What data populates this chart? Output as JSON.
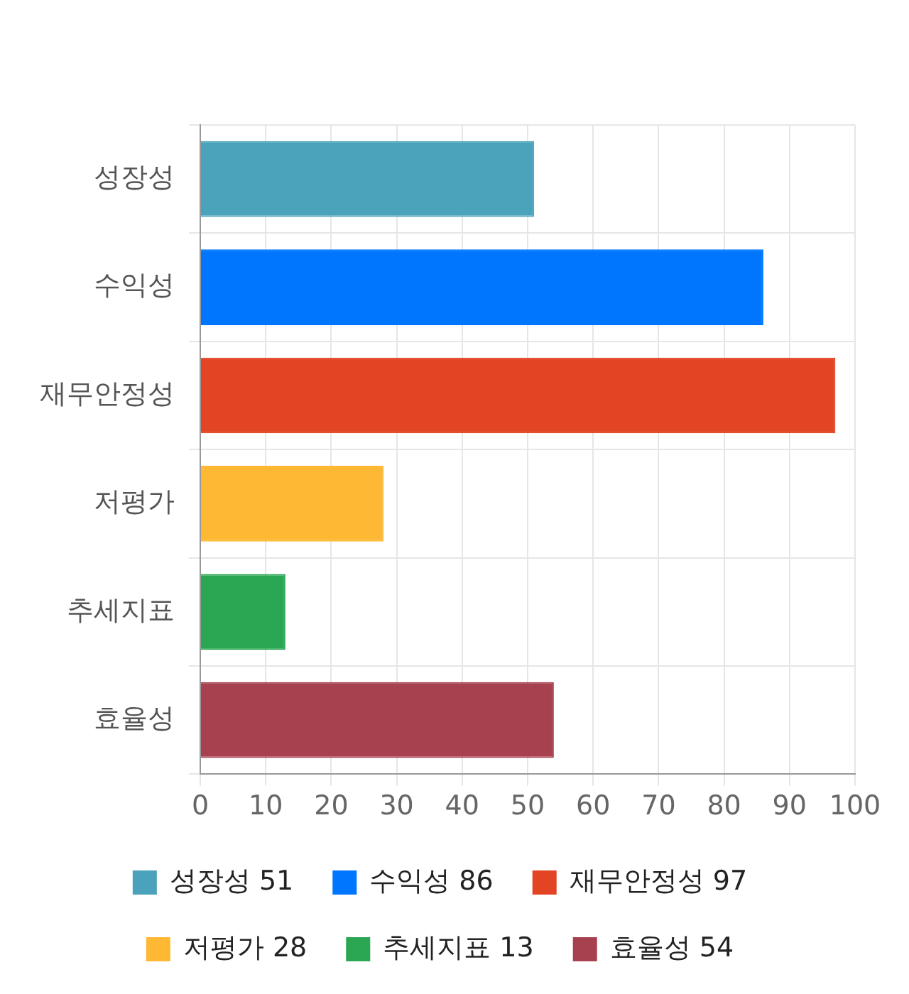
{
  "chart_data": {
    "type": "bar",
    "orientation": "horizontal",
    "stacked": true,
    "categories": [
      "성장성",
      "수익성",
      "재무안정성",
      "저평가",
      "추세지표",
      "효율성"
    ],
    "series": [
      {
        "name": "성장성 51",
        "color": "#4ba3bb",
        "values": [
          51,
          null,
          null,
          null,
          null,
          null
        ]
      },
      {
        "name": "수익성 86",
        "color": "#0076ff",
        "values": [
          null,
          86,
          null,
          null,
          null,
          null
        ]
      },
      {
        "name": "재무안정성 97",
        "color": "#e24424",
        "values": [
          null,
          null,
          97,
          null,
          null,
          null
        ]
      },
      {
        "name": "저평가 28",
        "color": "#ffb833",
        "values": [
          null,
          null,
          null,
          28,
          null,
          null
        ]
      },
      {
        "name": "추세지표 13",
        "color": "#2ba653",
        "values": [
          null,
          null,
          null,
          null,
          13,
          null
        ]
      },
      {
        "name": "효율성 54",
        "color": "#a8414f",
        "values": [
          null,
          null,
          null,
          null,
          null,
          54
        ]
      }
    ],
    "xlim": [
      0,
      100
    ],
    "xticks": [
      0,
      10,
      20,
      30,
      40,
      50,
      60,
      70,
      80,
      90,
      100
    ],
    "grid": true,
    "legend": "bottom"
  }
}
